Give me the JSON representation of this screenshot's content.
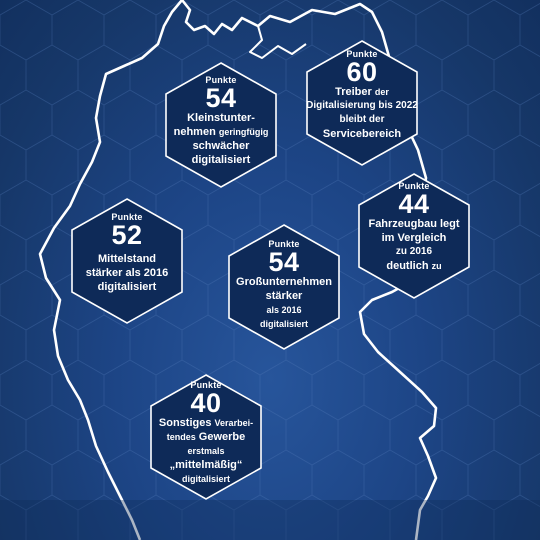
{
  "colors": {
    "background": "#1d4586",
    "hexagon_fill": "#0e2a58",
    "outline": "#ffffff",
    "text": "#ffffff"
  },
  "hexes": [
    {
      "kicker": "Punkte",
      "value": "54",
      "line1": "Kleinstunter-",
      "line2a": "nehmen",
      "line2b": "geringfügig",
      "line3": "schwächer",
      "line4": "digitalisiert"
    },
    {
      "kicker": "Punkte",
      "value": "60",
      "line1a": "Treiber",
      "line1b": "der",
      "line2": "Digitalisierung bis 2022",
      "line3": "bleibt der",
      "line4": "Servicebereich"
    },
    {
      "kicker": "Punkte",
      "value": "44",
      "line1": "Fahrzeugbau legt",
      "line2": "im Vergleich",
      "line3": "zu 2016",
      "line4a": "deutlich",
      "line4b": "zu"
    },
    {
      "kicker": "Punkte",
      "value": "52",
      "line1": "Mittelstand",
      "line2": "stärker als 2016",
      "line3": "digitalisiert"
    },
    {
      "kicker": "Punkte",
      "value": "54",
      "line1": "Großunternehmen",
      "line2": "stärker",
      "line3": "als 2016",
      "line4": "digitalisiert"
    },
    {
      "kicker": "Punkte",
      "value": "40",
      "line1a": "Sonstiges",
      "line1b": "Verarbei-",
      "line2a": "tendes",
      "line2b": "Gewerbe",
      "line3": "erstmals",
      "line4": "„mittelmäßig“",
      "line5": "digitalisiert"
    }
  ]
}
